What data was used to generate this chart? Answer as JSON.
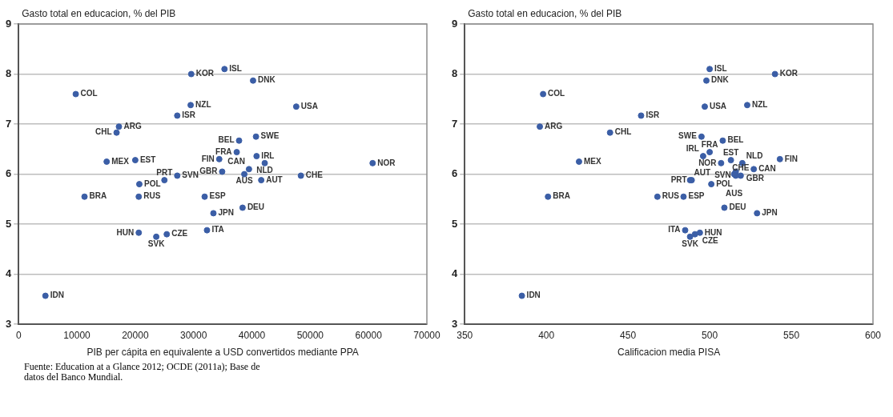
{
  "chart_data": [
    {
      "type": "scatter",
      "ylabel": "Gasto total en educacion, % del PIB",
      "xlabel": "PIB per cápita en equivalente a USD convertidos mediante PPA",
      "xlim": [
        0,
        70000
      ],
      "xticks": [
        0,
        10000,
        20000,
        30000,
        40000,
        50000,
        60000,
        70000
      ],
      "ylim": [
        3,
        9
      ],
      "yticks": [
        3,
        4,
        5,
        6,
        7,
        8,
        9
      ],
      "grid": "y",
      "marker": "circle",
      "annotations": [
        "Fuente: Education at a Glance 2012; OCDE (2011a); Base de datos del Banco Mundial."
      ],
      "series": [
        {
          "color": "#3b5ea6",
          "x": [
            9800,
            29600,
            35300,
            40200,
            47600,
            29500,
            27200,
            17200,
            16800,
            15100,
            20000,
            20700,
            11300,
            20600,
            25000,
            27200,
            20600,
            23600,
            25400,
            32300,
            33400,
            31900,
            38400,
            60700,
            37800,
            40700,
            37400,
            40800,
            34400,
            42200,
            39500,
            34900,
            38700,
            41600,
            48400,
            4600
          ],
          "values": [
            7.6,
            8.0,
            8.1,
            7.87,
            7.35,
            7.38,
            7.17,
            6.95,
            6.83,
            6.25,
            6.28,
            5.8,
            5.55,
            5.55,
            5.88,
            5.97,
            4.83,
            4.75,
            4.8,
            4.88,
            5.22,
            5.55,
            5.33,
            6.22,
            6.67,
            6.75,
            6.44,
            6.36,
            6.3,
            6.22,
            6.1,
            6.05,
            6.0,
            5.88,
            5.97,
            3.57
          ],
          "value_labels": [
            "COL",
            "KOR",
            "ISL",
            "DNK",
            "USA",
            "NZL",
            "ISR",
            "ARG",
            "CHL",
            "MEX",
            "EST",
            "POL",
            "BRA",
            "RUS",
            "PRT",
            "SVN",
            "HUN",
            "SVK",
            "CZE",
            "ITA",
            "JPN",
            "ESP",
            "DEU",
            "NOR",
            "BEL",
            "SWE",
            "FRA",
            "IRL",
            "FIN",
            "NLD",
            "CAN",
            "GBR",
            "AUS",
            "AUT",
            "CHE",
            "IDN"
          ]
        }
      ]
    },
    {
      "type": "scatter",
      "ylabel": "Gasto total en educacion, % del PIB",
      "xlabel": "Calificacion media PISA",
      "xlim": [
        350,
        600
      ],
      "xticks": [
        350,
        400,
        450,
        500,
        550,
        600
      ],
      "ylim": [
        3,
        9
      ],
      "yticks": [
        3,
        4,
        5,
        6,
        7,
        8,
        9
      ],
      "grid": "y",
      "marker": "circle",
      "series": [
        {
          "color": "#3b5ea6",
          "x": [
            398,
            540,
            500,
            498,
            497,
            523,
            458,
            396,
            439,
            420,
            513,
            501,
            401,
            468,
            489,
            516,
            494,
            488,
            491,
            485,
            529,
            484,
            509,
            507,
            508,
            495,
            500,
            496,
            543,
            520,
            527,
            516,
            515,
            488,
            519,
            385
          ],
          "values": [
            7.6,
            8.0,
            8.1,
            7.87,
            7.35,
            7.38,
            7.17,
            6.95,
            6.83,
            6.25,
            6.28,
            5.8,
            5.55,
            5.55,
            5.88,
            5.97,
            4.83,
            4.75,
            4.8,
            4.88,
            5.22,
            5.55,
            5.33,
            6.22,
            6.67,
            6.75,
            6.44,
            6.36,
            6.3,
            6.22,
            6.1,
            6.05,
            6.0,
            5.88,
            5.97,
            3.57
          ],
          "value_labels": [
            "COL",
            "KOR",
            "ISL",
            "DNK",
            "USA",
            "NZL",
            "ISR",
            "ARG",
            "CHL",
            "MEX",
            "EST",
            "POL",
            "BRA",
            "RUS",
            "PRT",
            "SVN",
            "HUN",
            "SVK",
            "CZE",
            "ITA",
            "JPN",
            "ESP",
            "DEU",
            "NOR",
            "BEL",
            "SWE",
            "FRA",
            "IRL",
            "FIN",
            "NLD",
            "CAN",
            "GBR",
            "AUS",
            "AUT",
            "CHE",
            "IDN"
          ]
        }
      ]
    }
  ]
}
